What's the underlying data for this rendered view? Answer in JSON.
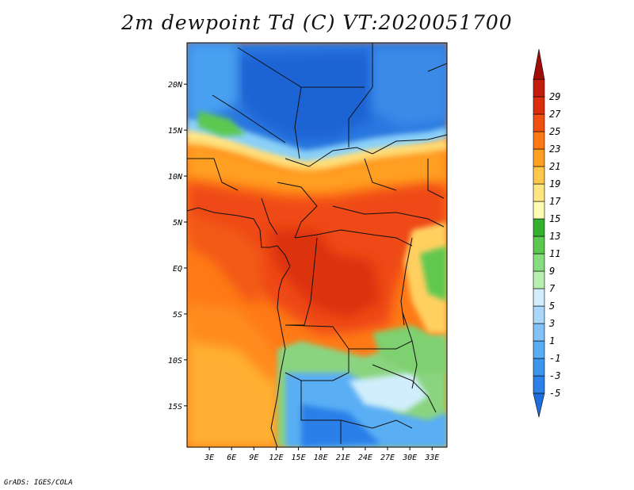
{
  "title": "2m dewpoint Td (C) VT:2020051700",
  "credit": "GrADS: IGES/COLA",
  "map": {
    "lon_range": [
      0,
      35
    ],
    "lat_range": [
      -19.5,
      24.5
    ],
    "x_ticks": [
      {
        "lon": 3,
        "label": "3E"
      },
      {
        "lon": 6,
        "label": "6E"
      },
      {
        "lon": 9,
        "label": "9E"
      },
      {
        "lon": 12,
        "label": "12E"
      },
      {
        "lon": 15,
        "label": "15E"
      },
      {
        "lon": 18,
        "label": "18E"
      },
      {
        "lon": 21,
        "label": "21E"
      },
      {
        "lon": 24,
        "label": "24E"
      },
      {
        "lon": 27,
        "label": "27E"
      },
      {
        "lon": 30,
        "label": "30E"
      },
      {
        "lon": 33,
        "label": "33E"
      }
    ],
    "y_ticks": [
      {
        "lat": 20,
        "label": "20N"
      },
      {
        "lat": 15,
        "label": "15N"
      },
      {
        "lat": 10,
        "label": "10N"
      },
      {
        "lat": 5,
        "label": "5N"
      },
      {
        "lat": 0,
        "label": "EQ"
      },
      {
        "lat": -5,
        "label": "5S"
      },
      {
        "lat": -10,
        "label": "10S"
      },
      {
        "lat": -15,
        "label": "15S"
      }
    ]
  },
  "colorbar": {
    "labels": [
      "-5",
      "-3",
      "-1",
      "1",
      "3",
      "5",
      "7",
      "9",
      "11",
      "13",
      "15",
      "17",
      "19",
      "21",
      "23",
      "25",
      "27",
      "29"
    ],
    "colors": [
      "#1e6ee0",
      "#2c80e8",
      "#3c96ee",
      "#5aacf4",
      "#82c2f8",
      "#aad8fa",
      "#d2eefc",
      "#b8f0b0",
      "#88dc80",
      "#5cc850",
      "#34b030",
      "#fffcb4",
      "#ffe680",
      "#ffc84c",
      "#ffa020",
      "#ff7814",
      "#f25012",
      "#dc2c0e",
      "#c41c0c",
      "#a00c08"
    ]
  }
}
